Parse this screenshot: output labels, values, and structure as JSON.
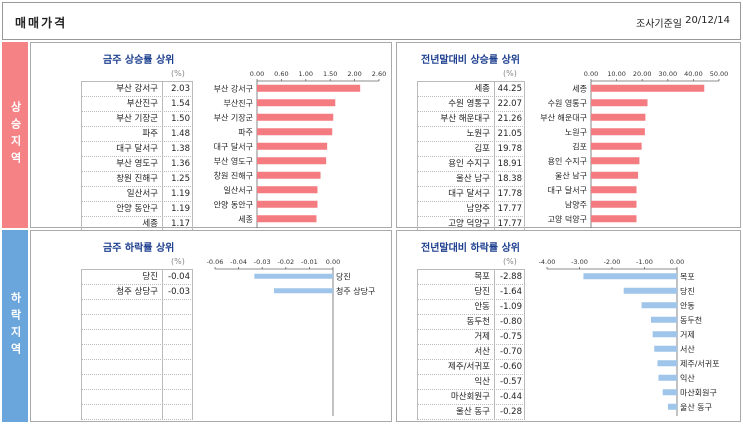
{
  "header": {
    "title": "매매가격",
    "date_label": "조사기준일",
    "date_value": "20/12/14"
  },
  "sections": {
    "up_label": "상승지역",
    "down_label": "하락지역"
  },
  "unit": "(%)",
  "chart_data": [
    {
      "type": "bar",
      "title": "금주 상승률 상위",
      "categories": [
        "부산 강서구",
        "부산진구",
        "부산 기장군",
        "파주",
        "대구 달서구",
        "부산 영도구",
        "창원 진해구",
        "일산서구",
        "안양 동안구",
        "세종"
      ],
      "values": [
        2.03,
        1.54,
        1.5,
        1.48,
        1.38,
        1.36,
        1.25,
        1.19,
        1.19,
        1.17
      ],
      "xlim": [
        0,
        2.4
      ],
      "ticks": [
        "0.00",
        "0.60",
        "1.00",
        "1.50",
        "2.00",
        "2.60"
      ],
      "color": "#f47b80"
    },
    {
      "type": "bar",
      "title": "전년말대비 상승률 상위",
      "categories": [
        "세종",
        "수원 영통구",
        "부산 해운대구",
        "노원구",
        "김포",
        "용인 수지구",
        "울산 남구",
        "대구 달서구",
        "남양주",
        "고양 덕양구"
      ],
      "values": [
        44.25,
        22.07,
        21.26,
        21.05,
        19.78,
        18.91,
        18.38,
        17.78,
        17.77,
        17.77
      ],
      "xlim": [
        0,
        50
      ],
      "ticks": [
        "0.00",
        "10.00",
        "20.00",
        "30.00",
        "40.00",
        "50.00"
      ],
      "color": "#f47b80"
    },
    {
      "type": "bar",
      "title": "금주 하락률 상위",
      "categories": [
        "당진",
        "청주 상당구"
      ],
      "values": [
        -0.04,
        -0.03
      ],
      "xlim": [
        -0.06,
        0
      ],
      "ticks": [
        "-0.06",
        "-0.04",
        "-0.03",
        "-0.02",
        "-0.01",
        "0.00"
      ],
      "color": "#9fc6ea"
    },
    {
      "type": "bar",
      "title": "전년말대비 하락률 상위",
      "categories": [
        "목포",
        "당진",
        "안동",
        "동두천",
        "거제",
        "서산",
        "제주/서귀포",
        "익산",
        "마산회원구",
        "울산 동구"
      ],
      "values": [
        -2.88,
        -1.64,
        -1.09,
        -0.8,
        -0.75,
        -0.7,
        -0.6,
        -0.57,
        -0.44,
        -0.28
      ],
      "xlim": [
        -4,
        0
      ],
      "ticks": [
        "-4.00",
        "-3.00",
        "-2.00",
        "-1.00",
        "0.00"
      ],
      "color": "#9fc6ea"
    }
  ]
}
